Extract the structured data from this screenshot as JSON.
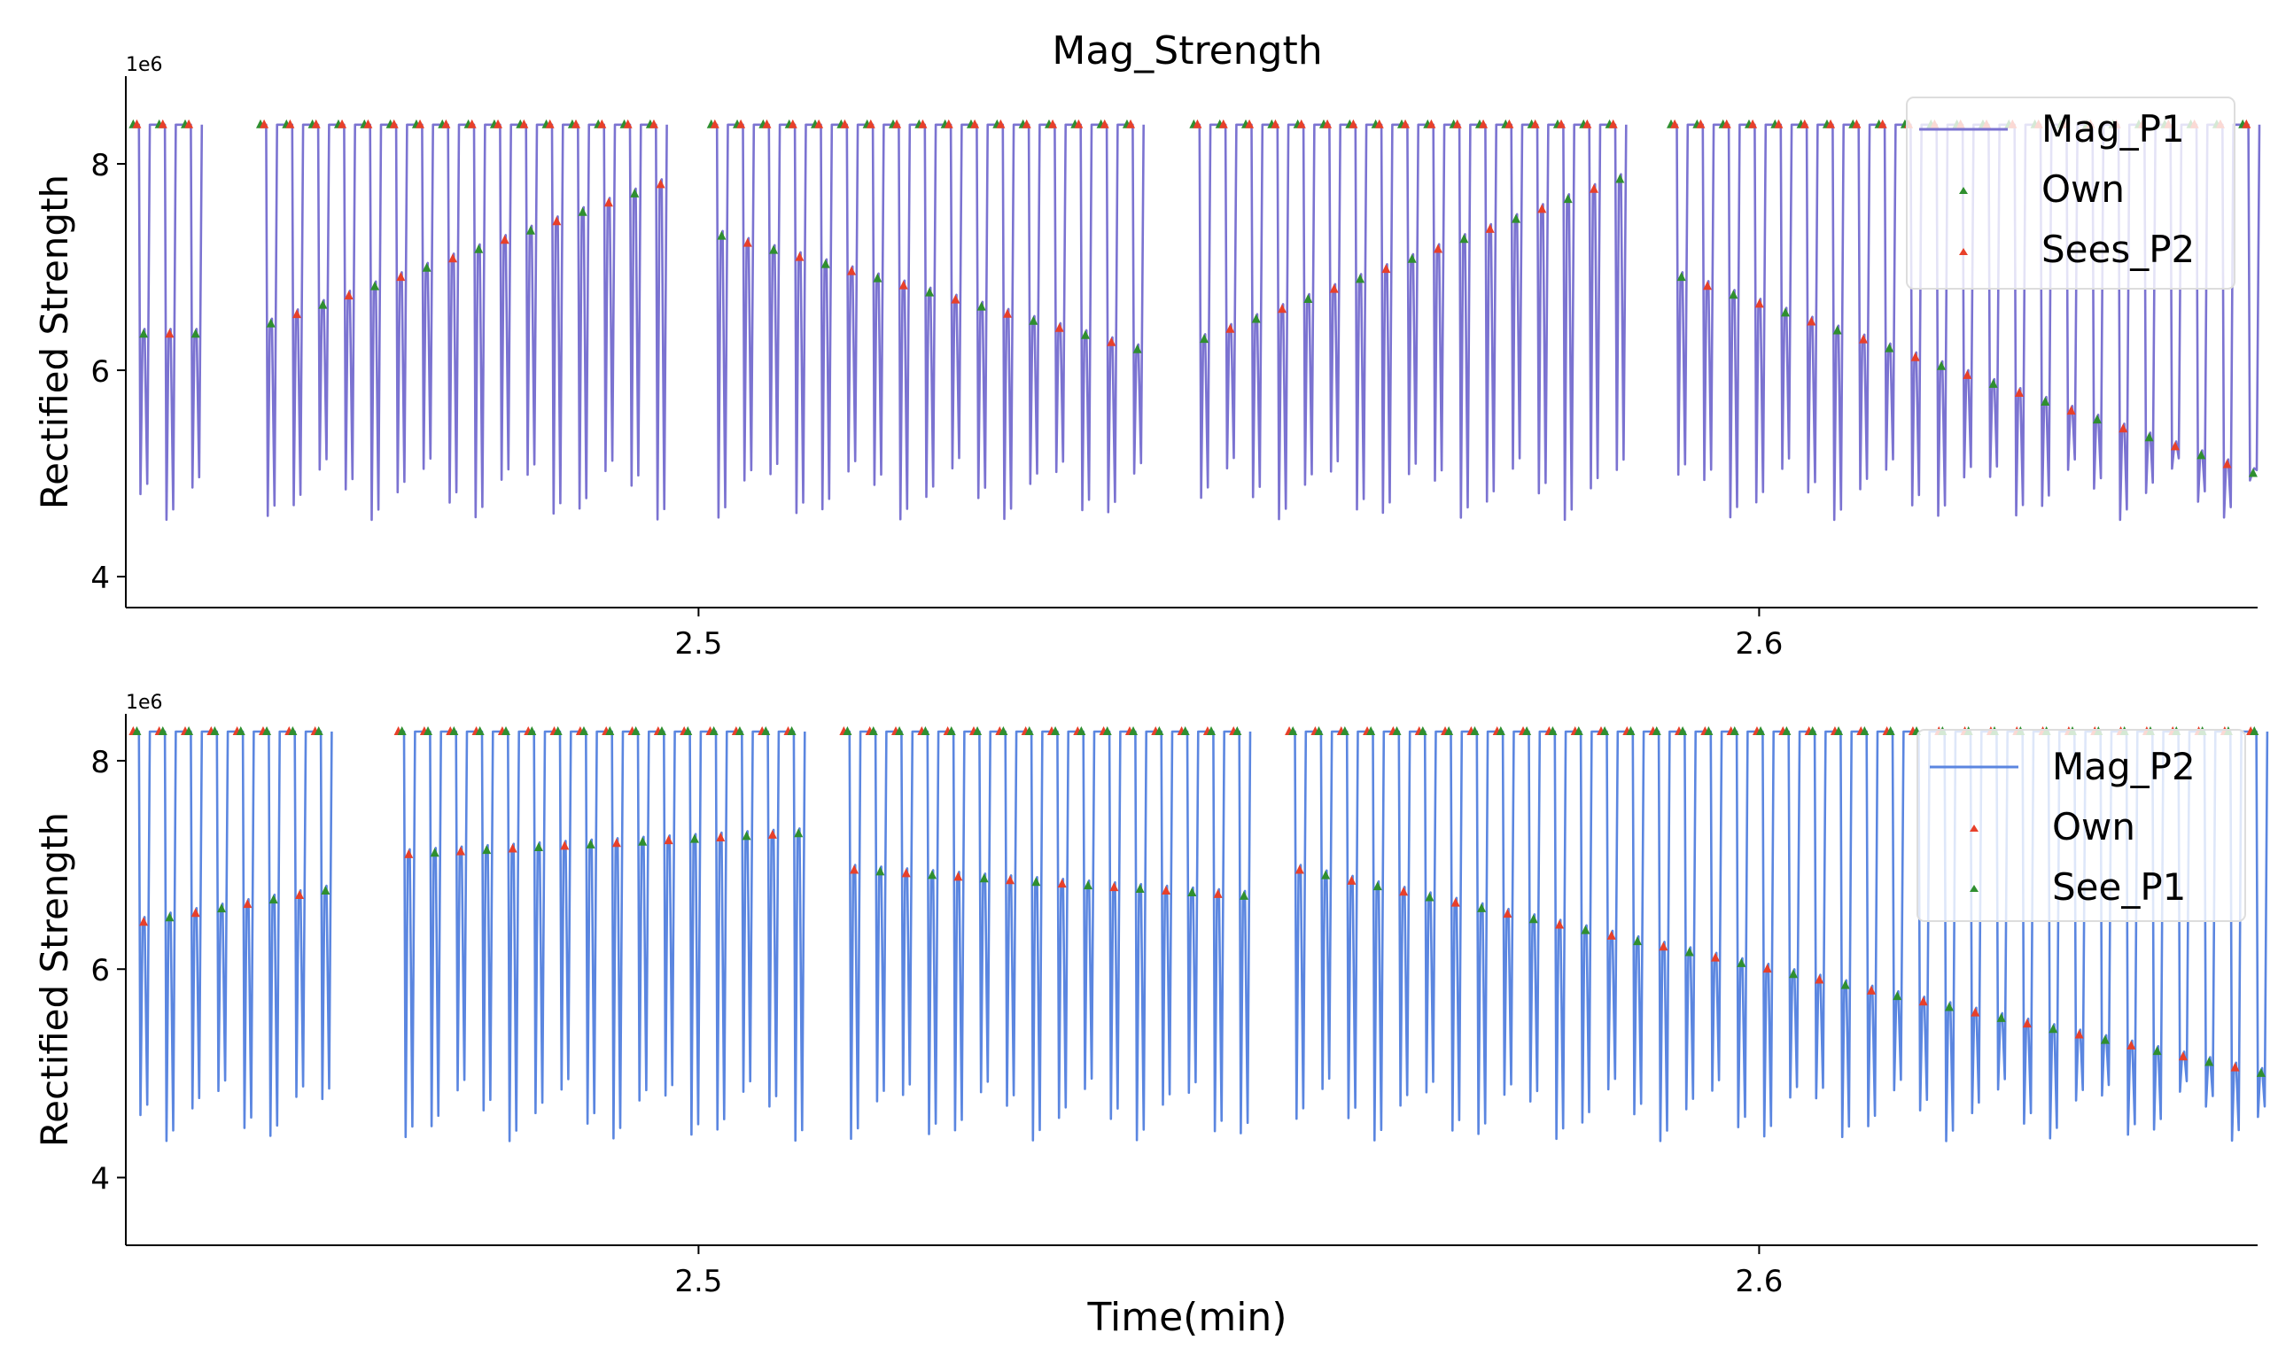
{
  "figure": {
    "title": "Mag_Strength",
    "x_axis_label": "Time(min)"
  },
  "colors": {
    "line_p1": "#7b73d1",
    "line_p2": "#5b86e0",
    "marker_green": "#2f8f2f",
    "marker_red": "#e8402a",
    "axis": "#000000"
  },
  "chart_data": [
    {
      "type": "line",
      "title": "Mag_Strength",
      "xlabel": "",
      "ylabel": "Rectified Strength",
      "offset_text": "1e6",
      "xlim": [
        2.446,
        2.647
      ],
      "ylim": [
        3.7,
        8.85
      ],
      "y_ticks": [
        4,
        6,
        8
      ],
      "y_tick_labels": [
        "4",
        "6",
        "8"
      ],
      "x_ticks": [
        2.5,
        2.6
      ],
      "x_tick_labels": [
        "2.5",
        "2.6"
      ],
      "legend_position": "upper-right",
      "series": [
        {
          "name": "Mag_P1",
          "kind": "line",
          "color": "#7b73d1",
          "peak": 8.38,
          "base": 4.8,
          "segments": [
            {
              "start": 2.4465,
              "end": 2.4535,
              "period": 0.00245,
              "mid": [
                6.35,
                6.35
              ]
            },
            {
              "start": 2.4585,
              "end": 2.4975,
              "period": 0.00245,
              "mid": [
                6.45,
                7.8
              ]
            },
            {
              "start": 2.501,
              "end": 2.541,
              "period": 0.00245,
              "mid": [
                7.3,
                6.2
              ]
            },
            {
              "start": 2.5465,
              "end": 2.5865,
              "period": 0.00245,
              "mid": [
                6.3,
                7.85
              ]
            },
            {
              "start": 2.5915,
              "end": 2.6465,
              "period": 0.00245,
              "mid": [
                6.9,
                5.0
              ]
            }
          ]
        },
        {
          "name": "Own",
          "kind": "markers",
          "color": "#2f8f2f",
          "marker": "triangle",
          "y_value": 8.38
        },
        {
          "name": "Sees_P2",
          "kind": "markers",
          "color": "#e8402a",
          "marker": "triangle",
          "y_value": 8.38
        }
      ]
    },
    {
      "type": "line",
      "title": "",
      "xlabel": "Time(min)",
      "ylabel": "Rectified Strength",
      "offset_text": "1e6",
      "xlim": [
        2.446,
        2.647
      ],
      "ylim": [
        3.35,
        8.45
      ],
      "y_ticks": [
        4,
        6,
        8
      ],
      "y_tick_labels": [
        "4",
        "6",
        "8"
      ],
      "x_ticks": [
        2.5,
        2.6
      ],
      "x_tick_labels": [
        "2.5",
        "2.6"
      ],
      "legend_position": "upper-right",
      "series": [
        {
          "name": "Mag_P2",
          "kind": "line",
          "color": "#5b86e0",
          "peak": 8.28,
          "base": 4.6,
          "segments": [
            {
              "start": 2.4465,
              "end": 2.4655,
              "period": 0.00245,
              "mid": [
                6.45,
                6.75
              ]
            },
            {
              "start": 2.4715,
              "end": 2.5095,
              "period": 0.00245,
              "mid": [
                7.1,
                7.3
              ]
            },
            {
              "start": 2.5135,
              "end": 2.5505,
              "period": 0.00245,
              "mid": [
                6.95,
                6.7
              ]
            },
            {
              "start": 2.5555,
              "end": 2.6465,
              "period": 0.00245,
              "mid": [
                6.95,
                5.0
              ]
            }
          ]
        },
        {
          "name": "Own",
          "kind": "markers",
          "color": "#e8402a",
          "marker": "triangle",
          "y_value": 8.28
        },
        {
          "name": "See_P1",
          "kind": "markers",
          "color": "#2f8f2f",
          "marker": "triangle",
          "y_value": 8.28
        }
      ]
    }
  ]
}
